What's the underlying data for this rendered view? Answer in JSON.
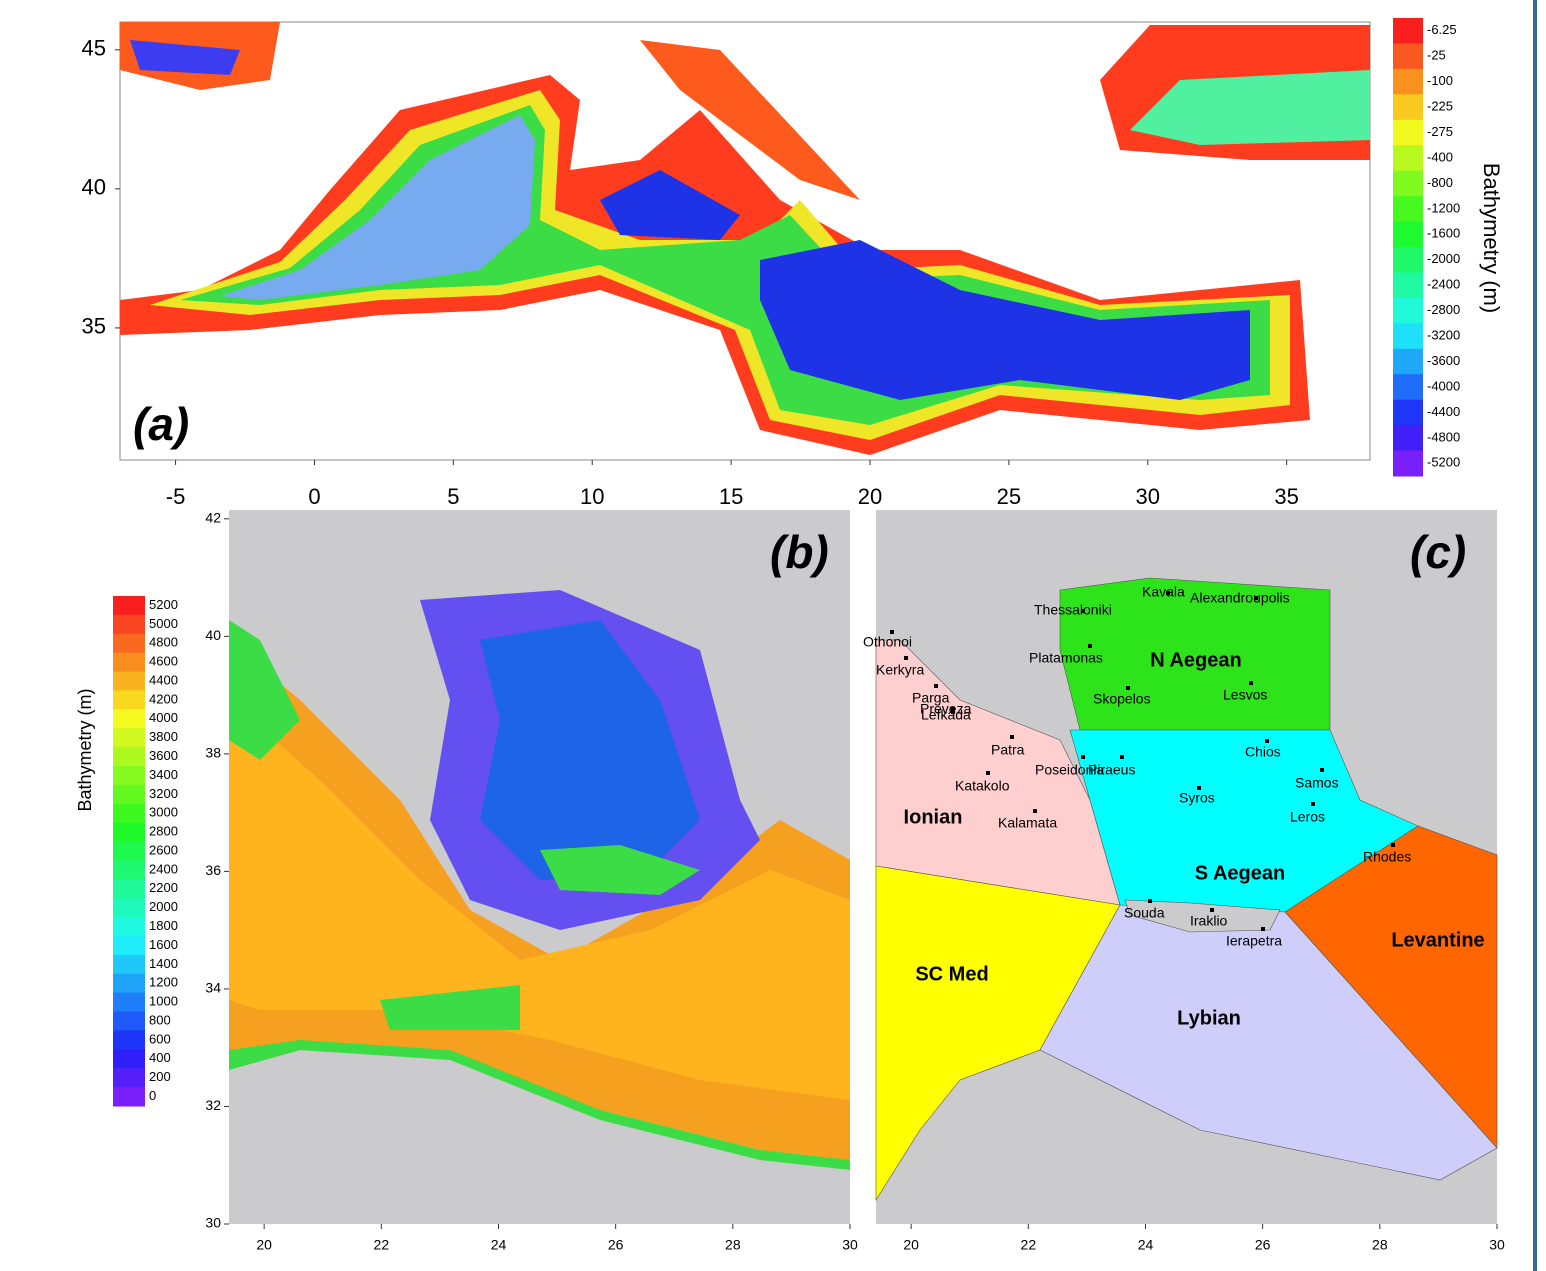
{
  "panel_a": {
    "label": "(a)",
    "xlim": [
      -7,
      38
    ],
    "ylim": [
      30.25,
      46
    ],
    "xticks": [
      -5,
      0,
      5,
      10,
      15,
      20,
      25,
      30,
      35
    ],
    "yticks": [
      35,
      40,
      45
    ],
    "colorbar": {
      "title": "Bathymetry (m)",
      "labels": [
        -6.25,
        -25,
        -100,
        -225,
        -275,
        -400,
        -800,
        -1200,
        -1600,
        -2000,
        -2400,
        -2800,
        -3200,
        -3600,
        -4000,
        -4400,
        -4800,
        -5200
      ]
    }
  },
  "panel_b": {
    "label": "(b)",
    "xlim": [
      19.4,
      30
    ],
    "ylim": [
      30,
      42.15
    ],
    "xticks": [
      20,
      22,
      24,
      26,
      28,
      30
    ],
    "yticks": [
      30,
      32,
      34,
      36,
      38,
      40,
      42
    ],
    "colorbar": {
      "title": "Bathymetry (m)",
      "labels": [
        5200,
        5000,
        4800,
        4600,
        4400,
        4200,
        4000,
        3800,
        3600,
        3400,
        3200,
        3000,
        2800,
        2600,
        2400,
        2200,
        2000,
        1800,
        1600,
        1400,
        1200,
        1000,
        800,
        600,
        400,
        200,
        0
      ]
    }
  },
  "panel_c": {
    "label": "(c)",
    "xlim": [
      19.4,
      30
    ],
    "ylim": [
      30,
      42.15
    ],
    "xticks": [
      20,
      22,
      24,
      26,
      28,
      30
    ],
    "regions": [
      "N Aegean",
      "S Aegean",
      "Ionian",
      "Levantine",
      "SC Med",
      "Lybian"
    ],
    "places": [
      "Kavala",
      "Alexandroupolis",
      "Thessaloniki",
      "Othonoi",
      "Platamonas",
      "Kerkyra",
      "Parga",
      "Preveza",
      "Lefkada",
      "Skopelos",
      "Lesvos",
      "Patra",
      "Chios",
      "Poseidonia",
      "Piraeus",
      "Samos",
      "Katakolo",
      "Syros",
      "Leros",
      "Kalamata",
      "Rhodes",
      "Souda",
      "Iraklio",
      "Ierapetra"
    ]
  }
}
